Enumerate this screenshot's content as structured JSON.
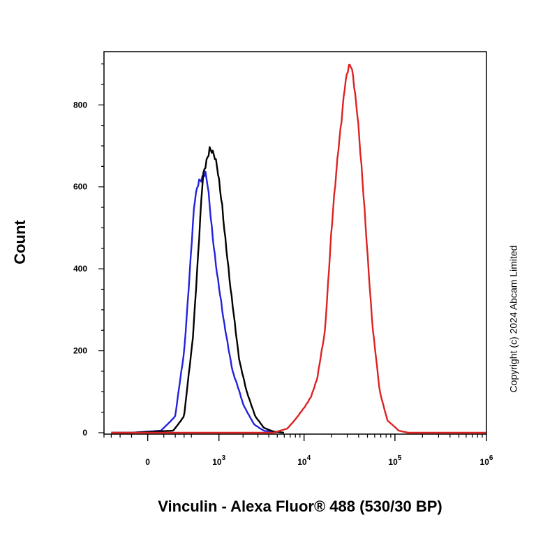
{
  "chart_data": {
    "type": "line",
    "title": "",
    "xlabel": "Vinculin - Alexa Fluor® 488 (530/30 BP)",
    "ylabel": "Count",
    "x_scale": "biexponential",
    "xlim": [
      -400,
      1000000
    ],
    "ylim": [
      0,
      930
    ],
    "x_ticks": [
      {
        "value": 0,
        "base": "0",
        "exp": ""
      },
      {
        "value": 1000,
        "base": "10",
        "exp": "3"
      },
      {
        "value": 10000,
        "base": "10",
        "exp": "4"
      },
      {
        "value": 100000,
        "base": "10",
        "exp": "5"
      },
      {
        "value": 1000000,
        "base": "10",
        "exp": "6"
      }
    ],
    "y_ticks": [
      0,
      200,
      400,
      600,
      800
    ],
    "grid": false,
    "legend": "none",
    "series": [
      {
        "color": "#2222dd",
        "points": [
          [
            -300,
            0
          ],
          [
            -100,
            0
          ],
          [
            80,
            5
          ],
          [
            200,
            40
          ],
          [
            300,
            200
          ],
          [
            380,
            400
          ],
          [
            450,
            560
          ],
          [
            520,
            620
          ],
          [
            590,
            628
          ],
          [
            650,
            632
          ],
          [
            700,
            600
          ],
          [
            800,
            500
          ],
          [
            950,
            390
          ],
          [
            1150,
            270
          ],
          [
            1500,
            150
          ],
          [
            2000,
            70
          ],
          [
            2700,
            20
          ],
          [
            3500,
            5
          ],
          [
            5000,
            0
          ]
        ]
      },
      {
        "color": "#000000",
        "points": [
          [
            -300,
            0
          ],
          [
            -100,
            0
          ],
          [
            180,
            5
          ],
          [
            300,
            40
          ],
          [
            420,
            230
          ],
          [
            520,
            450
          ],
          [
            600,
            620
          ],
          [
            680,
            670
          ],
          [
            750,
            700
          ],
          [
            800,
            690
          ],
          [
            870,
            670
          ],
          [
            950,
            640
          ],
          [
            1100,
            560
          ],
          [
            1400,
            350
          ],
          [
            1800,
            180
          ],
          [
            2200,
            100
          ],
          [
            2800,
            40
          ],
          [
            3500,
            12
          ],
          [
            4500,
            3
          ],
          [
            6000,
            0
          ]
        ]
      },
      {
        "color": "#dd2222",
        "points": [
          [
            -300,
            0
          ],
          [
            4500,
            0
          ],
          [
            6500,
            10
          ],
          [
            8500,
            40
          ],
          [
            10000,
            60
          ],
          [
            12000,
            90
          ],
          [
            14000,
            130
          ],
          [
            17000,
            250
          ],
          [
            20000,
            480
          ],
          [
            24000,
            700
          ],
          [
            28000,
            840
          ],
          [
            31000,
            885
          ],
          [
            33000,
            892
          ],
          [
            35000,
            870
          ],
          [
            39000,
            780
          ],
          [
            47000,
            520
          ],
          [
            57000,
            260
          ],
          [
            68000,
            100
          ],
          [
            83000,
            30
          ],
          [
            110000,
            5
          ],
          [
            140000,
            0
          ],
          [
            1000000,
            0
          ]
        ]
      }
    ],
    "annotations": [
      "Copyright (c) 2024 Abcam Limited"
    ]
  }
}
